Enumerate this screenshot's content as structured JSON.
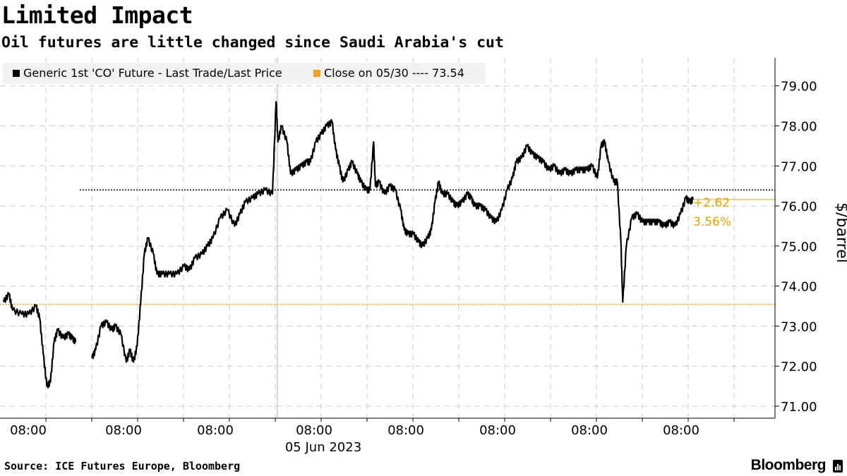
{
  "header": {
    "title": "Limited Impact",
    "subtitle": "Oil futures are little changed since Saudi Arabia's cut"
  },
  "footer": {
    "source": "Source: ICE Futures Europe, Bloomberg",
    "brand": "Bloomberg",
    "brand_icon": "bar-chart-icon"
  },
  "colors": {
    "price_line": "#000000",
    "close_line": "#f0a020",
    "change_text": "#e8a000",
    "grid": "#cccccc",
    "legend_bg": "#f2f2f2"
  },
  "chart_data": {
    "type": "line",
    "ylabel": "$/barrel",
    "ylim": [
      70.7,
      79.7
    ],
    "yticks": [
      "79.00",
      "78.00",
      "77.00",
      "76.00",
      "75.00",
      "74.00",
      "73.00",
      "72.00",
      "71.00"
    ],
    "ytick_values": [
      79,
      78,
      77,
      76,
      75,
      74,
      73,
      72,
      71
    ],
    "axis_side": "right",
    "grid": true,
    "legend_placement": "top-left",
    "x_tick_labels": [
      "08:00",
      "08:00",
      "08:00",
      "08:00",
      "08:00",
      "08:00",
      "08:00",
      "08:00"
    ],
    "x_date_label": "05 Jun 2023",
    "series": [
      {
        "name": "Generic 1st 'CO' Future - Last Trade/Last Price",
        "points": [
          [
            0.0,
            73.6
          ],
          [
            0.3,
            73.8
          ],
          [
            0.5,
            73.4
          ],
          [
            1.0,
            73.3
          ],
          [
            1.4,
            73.3
          ],
          [
            1.8,
            73.5
          ],
          [
            2.0,
            73.2
          ],
          [
            2.2,
            72.3
          ],
          [
            2.4,
            71.5
          ],
          [
            2.6,
            71.6
          ],
          [
            2.8,
            72.6
          ],
          [
            3.0,
            72.9
          ],
          [
            3.3,
            72.7
          ],
          [
            3.6,
            72.8
          ],
          [
            3.8,
            72.7
          ],
          [
            4.0,
            72.6
          ],
          [
            4.9,
            72.2
          ],
          [
            5.1,
            72.4
          ],
          [
            5.4,
            73.0
          ],
          [
            5.7,
            73.1
          ],
          [
            6.0,
            72.9
          ],
          [
            6.2,
            73.0
          ],
          [
            6.5,
            72.8
          ],
          [
            6.8,
            72.1
          ],
          [
            7.0,
            72.4
          ],
          [
            7.2,
            72.1
          ],
          [
            7.4,
            72.5
          ],
          [
            7.6,
            73.6
          ],
          [
            7.8,
            74.8
          ],
          [
            8.0,
            75.2
          ],
          [
            8.3,
            74.8
          ],
          [
            8.5,
            74.3
          ],
          [
            8.8,
            74.3
          ],
          [
            9.2,
            74.3
          ],
          [
            9.6,
            74.3
          ],
          [
            10.0,
            74.5
          ],
          [
            10.3,
            74.4
          ],
          [
            10.6,
            74.7
          ],
          [
            11.0,
            74.8
          ],
          [
            11.3,
            75.0
          ],
          [
            11.6,
            75.2
          ],
          [
            12.0,
            75.7
          ],
          [
            12.4,
            75.9
          ],
          [
            12.8,
            75.5
          ],
          [
            13.1,
            75.8
          ],
          [
            13.4,
            76.1
          ],
          [
            13.8,
            76.2
          ],
          [
            14.1,
            76.3
          ],
          [
            14.5,
            76.4
          ],
          [
            14.9,
            76.3
          ],
          [
            15.1,
            78.6
          ],
          [
            15.2,
            77.6
          ],
          [
            15.4,
            78.0
          ],
          [
            15.7,
            77.6
          ],
          [
            15.9,
            76.8
          ],
          [
            16.2,
            76.9
          ],
          [
            16.5,
            77.0
          ],
          [
            16.8,
            77.1
          ],
          [
            17.0,
            77.1
          ],
          [
            17.3,
            77.6
          ],
          [
            17.6,
            77.8
          ],
          [
            17.9,
            78.0
          ],
          [
            18.2,
            78.1
          ],
          [
            18.4,
            77.4
          ],
          [
            18.6,
            77.0
          ],
          [
            18.8,
            76.6
          ],
          [
            19.1,
            76.9
          ],
          [
            19.3,
            77.1
          ],
          [
            19.6,
            76.8
          ],
          [
            19.8,
            76.6
          ],
          [
            20.1,
            76.4
          ],
          [
            20.3,
            76.4
          ],
          [
            20.5,
            77.6
          ],
          [
            20.6,
            76.5
          ],
          [
            20.8,
            76.6
          ],
          [
            21.1,
            76.3
          ],
          [
            21.4,
            76.5
          ],
          [
            21.7,
            76.4
          ],
          [
            22.0,
            75.9
          ],
          [
            22.2,
            75.4
          ],
          [
            22.4,
            75.3
          ],
          [
            22.7,
            75.3
          ],
          [
            23.0,
            75.1
          ],
          [
            23.2,
            75.0
          ],
          [
            23.5,
            75.2
          ],
          [
            23.7,
            75.4
          ],
          [
            23.9,
            76.1
          ],
          [
            24.1,
            76.6
          ],
          [
            24.3,
            76.3
          ],
          [
            24.6,
            76.3
          ],
          [
            24.9,
            76.1
          ],
          [
            25.1,
            76.0
          ],
          [
            25.4,
            76.1
          ],
          [
            25.7,
            76.3
          ],
          [
            25.9,
            76.2
          ],
          [
            26.1,
            76.0
          ],
          [
            26.4,
            76.0
          ],
          [
            26.7,
            75.9
          ],
          [
            27.0,
            75.7
          ],
          [
            27.3,
            75.6
          ],
          [
            27.6,
            75.9
          ],
          [
            27.9,
            76.4
          ],
          [
            28.2,
            76.7
          ],
          [
            28.4,
            77.1
          ],
          [
            28.7,
            77.2
          ],
          [
            29.0,
            77.5
          ],
          [
            29.3,
            77.3
          ],
          [
            29.6,
            77.2
          ],
          [
            29.9,
            77.1
          ],
          [
            30.2,
            76.9
          ],
          [
            30.5,
            77.0
          ],
          [
            30.8,
            76.8
          ],
          [
            31.1,
            76.9
          ],
          [
            31.4,
            76.8
          ],
          [
            31.7,
            76.9
          ],
          [
            32.0,
            76.9
          ],
          [
            32.3,
            76.9
          ],
          [
            32.6,
            77.0
          ],
          [
            32.9,
            76.7
          ],
          [
            33.1,
            77.5
          ],
          [
            33.3,
            77.6
          ],
          [
            33.5,
            77.1
          ],
          [
            33.8,
            76.6
          ],
          [
            34.0,
            76.6
          ],
          [
            34.2,
            75.1
          ],
          [
            34.3,
            73.6
          ],
          [
            34.5,
            75.0
          ],
          [
            34.8,
            75.7
          ],
          [
            35.1,
            75.8
          ],
          [
            35.4,
            75.6
          ],
          [
            35.7,
            75.6
          ],
          [
            36.0,
            75.6
          ],
          [
            36.3,
            75.6
          ],
          [
            36.6,
            75.5
          ],
          [
            36.9,
            75.6
          ],
          [
            37.2,
            75.5
          ],
          [
            37.5,
            75.8
          ],
          [
            37.8,
            76.2
          ],
          [
            38.0,
            76.1
          ],
          [
            38.2,
            76.16
          ]
        ]
      },
      {
        "name": "Close on 05/30 ---- 73.54",
        "value": 73.54
      }
    ],
    "reference_line": 76.4,
    "annotations": [
      "+2.62",
      "3.56%"
    ],
    "last_value": 76.16
  }
}
